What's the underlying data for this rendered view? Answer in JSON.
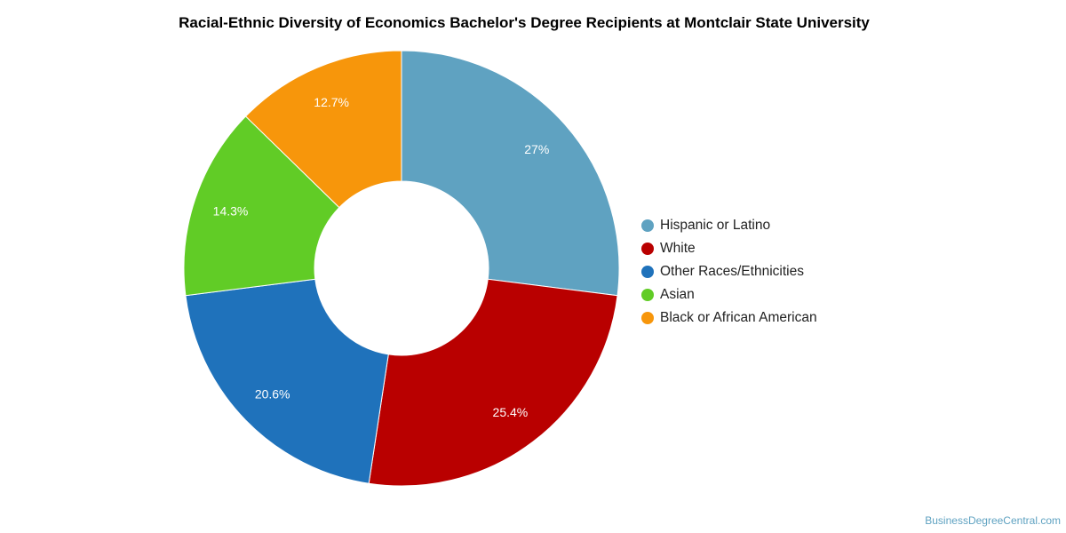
{
  "chart_data": {
    "type": "pie",
    "title": "Racial-Ethnic Diversity of Economics Bachelor's Degree Recipients at Montclair State University",
    "donut": true,
    "legend_position": "right",
    "categories": [
      "Hispanic or Latino",
      "White",
      "Other Races/Ethnicities",
      "Asian",
      "Black or African American"
    ],
    "values": [
      27,
      25.4,
      20.6,
      14.3,
      12.7
    ],
    "labels": [
      "27%",
      "25.4%",
      "20.6%",
      "14.3%",
      "12.7%"
    ],
    "colors": [
      "#5fa2c1",
      "#b90000",
      "#1f72bb",
      "#61cc26",
      "#f7960b"
    ]
  },
  "watermark": "BusinessDegreeCentral.com"
}
